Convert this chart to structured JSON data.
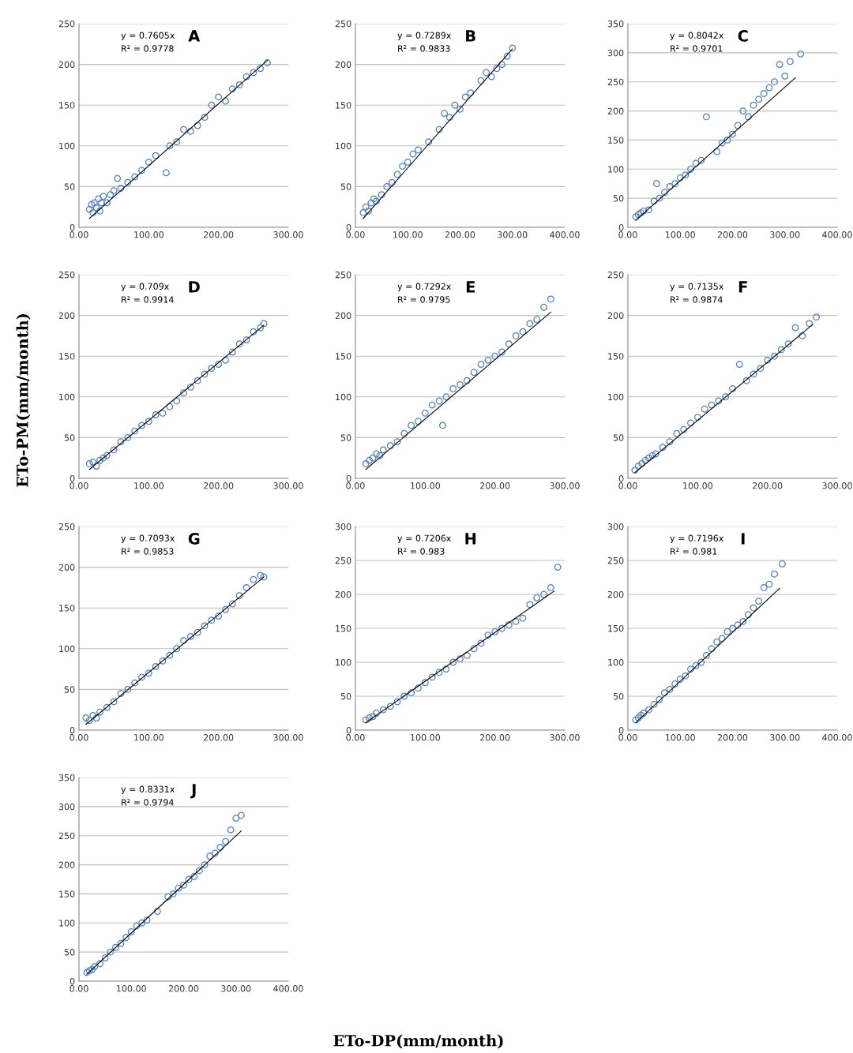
{
  "chart_data": [
    {
      "type": "scatter",
      "title": "A",
      "annotations": [
        "y = 0.7605x",
        "R² = 0.9778"
      ],
      "xlim": [
        0,
        300
      ],
      "xticks": [
        {
          "value": 0,
          "label": "0.00"
        },
        {
          "value": 100,
          "label": "100.00"
        },
        {
          "value": 200,
          "label": "200.00"
        },
        {
          "value": 300,
          "label": "300.00"
        }
      ],
      "ylim": [
        0,
        250
      ],
      "yticks": [
        0,
        50,
        100,
        150,
        200,
        250
      ],
      "grid": "y",
      "marker": "circle",
      "series": [
        {
          "color": "#4f81bd",
          "x": [
            15,
            18,
            20,
            22,
            25,
            28,
            30,
            32,
            35,
            40,
            45,
            50,
            55,
            60,
            70,
            80,
            90,
            100,
            110,
            125,
            130,
            140,
            150,
            160,
            170,
            180,
            190,
            200,
            210,
            220,
            230,
            240,
            250,
            260,
            270
          ],
          "values": [
            22,
            28,
            18,
            30,
            24,
            35,
            20,
            30,
            38,
            30,
            40,
            45,
            60,
            48,
            55,
            62,
            70,
            80,
            88,
            67,
            100,
            105,
            120,
            118,
            125,
            135,
            150,
            160,
            155,
            170,
            175,
            185,
            190,
            195,
            202
          ]
        },
        {
          "type": "line",
          "color": "#000000",
          "marker": "none",
          "x": [
            15,
            270
          ],
          "values": [
            11,
            205
          ]
        }
      ]
    },
    {
      "type": "scatter",
      "title": "B",
      "annotations": [
        "y = 0.7289x",
        "R² = 0.9833"
      ],
      "xlim": [
        0,
        400
      ],
      "xticks": [
        {
          "value": 0,
          "label": "0.00"
        },
        {
          "value": 100,
          "label": "100.00"
        },
        {
          "value": 200,
          "label": "200.00"
        },
        {
          "value": 300,
          "label": "300.00"
        },
        {
          "value": 400,
          "label": "400.00"
        }
      ],
      "ylim": [
        0,
        250
      ],
      "yticks": [
        0,
        50,
        100,
        150,
        200,
        250
      ],
      "grid": "y",
      "marker": "circle",
      "series": [
        {
          "color": "#4f81bd",
          "x": [
            15,
            20,
            25,
            30,
            35,
            40,
            50,
            60,
            70,
            80,
            90,
            100,
            110,
            120,
            140,
            160,
            170,
            180,
            190,
            200,
            210,
            220,
            240,
            250,
            260,
            270,
            280,
            290,
            300
          ],
          "values": [
            18,
            25,
            20,
            30,
            35,
            32,
            40,
            50,
            55,
            65,
            75,
            80,
            90,
            95,
            105,
            120,
            140,
            135,
            150,
            145,
            160,
            165,
            180,
            190,
            185,
            195,
            200,
            210,
            220
          ]
        },
        {
          "type": "line",
          "color": "#000000",
          "marker": "none",
          "x": [
            15,
            300
          ],
          "values": [
            11,
            219
          ]
        }
      ]
    },
    {
      "type": "scatter",
      "title": "C",
      "annotations": [
        "y = 0.8042x",
        "R² = 0.9701"
      ],
      "xlim": [
        0,
        400
      ],
      "xticks": [
        {
          "value": 0,
          "label": "0.00"
        },
        {
          "value": 100,
          "label": "100.00"
        },
        {
          "value": 200,
          "label": "200.00"
        },
        {
          "value": 300,
          "label": "300.00"
        },
        {
          "value": 400,
          "label": "400.00"
        }
      ],
      "ylim": [
        0,
        350
      ],
      "yticks": [
        0,
        50,
        100,
        150,
        200,
        250,
        300,
        350
      ],
      "grid": "y",
      "marker": "circle",
      "series": [
        {
          "color": "#4f81bd",
          "x": [
            15,
            20,
            25,
            30,
            40,
            50,
            55,
            60,
            70,
            80,
            90,
            100,
            110,
            120,
            130,
            140,
            150,
            170,
            180,
            190,
            200,
            210,
            220,
            230,
            240,
            250,
            260,
            270,
            280,
            290,
            300,
            310,
            330
          ],
          "values": [
            18,
            22,
            25,
            28,
            30,
            45,
            75,
            50,
            60,
            70,
            75,
            85,
            90,
            100,
            110,
            115,
            190,
            130,
            145,
            150,
            160,
            175,
            200,
            190,
            210,
            220,
            230,
            240,
            250,
            280,
            260,
            285,
            298
          ]
        },
        {
          "type": "line",
          "color": "#000000",
          "marker": "none",
          "x": [
            15,
            320
          ],
          "values": [
            12,
            257
          ]
        }
      ]
    },
    {
      "type": "scatter",
      "title": "D",
      "annotations": [
        "y = 0.709x",
        "R² = 0.9914"
      ],
      "ylabel": "ETo-PM(mm/month)",
      "xlim": [
        0,
        300
      ],
      "xticks": [
        {
          "value": 0,
          "label": "0.00"
        },
        {
          "value": 100,
          "label": "100.00"
        },
        {
          "value": 200,
          "label": "200.00"
        },
        {
          "value": 300,
          "label": "300.00"
        }
      ],
      "ylim": [
        0,
        250
      ],
      "yticks": [
        0,
        50,
        100,
        150,
        200,
        250
      ],
      "grid": "y",
      "marker": "circle",
      "series": [
        {
          "color": "#4f81bd",
          "x": [
            15,
            20,
            25,
            30,
            35,
            40,
            50,
            60,
            70,
            80,
            90,
            100,
            110,
            120,
            130,
            140,
            150,
            160,
            170,
            180,
            190,
            200,
            210,
            220,
            230,
            240,
            250,
            260,
            265
          ],
          "values": [
            18,
            20,
            15,
            22,
            25,
            28,
            35,
            45,
            50,
            58,
            65,
            70,
            78,
            80,
            88,
            95,
            105,
            112,
            120,
            128,
            135,
            140,
            145,
            155,
            165,
            170,
            180,
            185,
            190
          ]
        },
        {
          "type": "line",
          "color": "#000000",
          "marker": "none",
          "x": [
            15,
            265
          ],
          "values": [
            11,
            188
          ]
        }
      ]
    },
    {
      "type": "scatter",
      "title": "E",
      "annotations": [
        "y = 0.7292x",
        "R² = 0.9795"
      ],
      "xlim": [
        0,
        300
      ],
      "xticks": [
        {
          "value": 0,
          "label": "0.00"
        },
        {
          "value": 100,
          "label": "100.00"
        },
        {
          "value": 200,
          "label": "200.00"
        },
        {
          "value": 300,
          "label": "300.00"
        }
      ],
      "ylim": [
        0,
        250
      ],
      "yticks": [
        0,
        50,
        100,
        150,
        200,
        250
      ],
      "grid": "y",
      "marker": "circle",
      "series": [
        {
          "color": "#4f81bd",
          "x": [
            15,
            20,
            25,
            30,
            35,
            40,
            50,
            60,
            70,
            80,
            90,
            100,
            110,
            120,
            125,
            130,
            140,
            150,
            160,
            170,
            180,
            190,
            200,
            210,
            220,
            230,
            240,
            250,
            260,
            270,
            280
          ],
          "values": [
            18,
            22,
            25,
            30,
            28,
            35,
            40,
            45,
            55,
            65,
            70,
            80,
            90,
            95,
            65,
            100,
            110,
            115,
            120,
            130,
            140,
            145,
            150,
            155,
            165,
            175,
            180,
            190,
            195,
            210,
            220
          ]
        },
        {
          "type": "line",
          "color": "#000000",
          "marker": "none",
          "x": [
            15,
            280
          ],
          "values": [
            11,
            204
          ]
        }
      ]
    },
    {
      "type": "scatter",
      "title": "F",
      "annotations": [
        "y = 0.7135x",
        "R² = 0.9874"
      ],
      "xlim": [
        0,
        300
      ],
      "xticks": [
        {
          "value": 0,
          "label": "0.00"
        },
        {
          "value": 100,
          "label": "100.00"
        },
        {
          "value": 200,
          "label": "200.00"
        },
        {
          "value": 300,
          "label": "300.00"
        }
      ],
      "ylim": [
        0,
        250
      ],
      "yticks": [
        0,
        50,
        100,
        150,
        200,
        250
      ],
      "grid": "y",
      "marker": "circle",
      "series": [
        {
          "color": "#4f81bd",
          "x": [
            10,
            15,
            20,
            25,
            30,
            35,
            40,
            50,
            60,
            70,
            80,
            90,
            100,
            110,
            120,
            130,
            140,
            150,
            160,
            170,
            180,
            190,
            200,
            210,
            220,
            230,
            240,
            250,
            260,
            270
          ],
          "values": [
            10,
            15,
            18,
            22,
            25,
            28,
            30,
            38,
            45,
            55,
            60,
            68,
            75,
            85,
            90,
            95,
            100,
            110,
            140,
            120,
            128,
            135,
            145,
            150,
            158,
            165,
            185,
            175,
            190,
            198
          ]
        },
        {
          "type": "line",
          "color": "#000000",
          "marker": "none",
          "x": [
            10,
            265
          ],
          "values": [
            7,
            189
          ]
        }
      ]
    },
    {
      "type": "scatter",
      "title": "G",
      "annotations": [
        "y = 0.7093x",
        "R² = 0.9853"
      ],
      "xlim": [
        0,
        300
      ],
      "xticks": [
        {
          "value": 0,
          "label": "0.00"
        },
        {
          "value": 100,
          "label": "100.00"
        },
        {
          "value": 200,
          "label": "200.00"
        },
        {
          "value": 300,
          "label": "300.00"
        }
      ],
      "ylim": [
        0,
        250
      ],
      "yticks": [
        0,
        50,
        100,
        150,
        200,
        250
      ],
      "grid": "y",
      "marker": "circle",
      "series": [
        {
          "color": "#4f81bd",
          "x": [
            10,
            15,
            20,
            25,
            30,
            40,
            50,
            60,
            70,
            80,
            90,
            100,
            110,
            120,
            130,
            140,
            150,
            160,
            170,
            180,
            190,
            200,
            210,
            220,
            230,
            240,
            250,
            260,
            265
          ],
          "values": [
            15,
            12,
            18,
            15,
            22,
            28,
            35,
            45,
            50,
            58,
            65,
            70,
            78,
            85,
            92,
            100,
            110,
            115,
            120,
            128,
            135,
            140,
            148,
            155,
            165,
            175,
            185,
            190,
            188
          ]
        },
        {
          "type": "line",
          "color": "#000000",
          "marker": "none",
          "x": [
            10,
            265
          ],
          "values": [
            7,
            188
          ]
        }
      ]
    },
    {
      "type": "scatter",
      "title": "H",
      "annotations": [
        "y = 0.7206x",
        "R² = 0.983"
      ],
      "xlim": [
        0,
        300
      ],
      "xticks": [
        {
          "value": 0,
          "label": "0.00"
        },
        {
          "value": 100,
          "label": "100.00"
        },
        {
          "value": 200,
          "label": "200.00"
        },
        {
          "value": 300,
          "label": "300.00"
        }
      ],
      "ylim": [
        0,
        300
      ],
      "yticks": [
        0,
        50,
        100,
        150,
        200,
        250,
        300
      ],
      "grid": "y",
      "marker": "circle",
      "series": [
        {
          "color": "#4f81bd",
          "x": [
            15,
            20,
            25,
            30,
            40,
            50,
            60,
            70,
            80,
            90,
            100,
            110,
            120,
            130,
            140,
            150,
            160,
            170,
            180,
            190,
            200,
            210,
            220,
            230,
            240,
            250,
            260,
            270,
            280,
            290
          ],
          "values": [
            15,
            18,
            20,
            25,
            30,
            35,
            42,
            50,
            55,
            62,
            70,
            78,
            85,
            90,
            100,
            105,
            110,
            120,
            128,
            140,
            145,
            150,
            155,
            160,
            165,
            185,
            195,
            200,
            210,
            240
          ]
        },
        {
          "type": "line",
          "color": "#000000",
          "marker": "none",
          "x": [
            15,
            285
          ],
          "values": [
            11,
            205
          ]
        }
      ]
    },
    {
      "type": "scatter",
      "title": "I",
      "annotations": [
        "y = 0.7196x",
        "R² = 0.981"
      ],
      "xlim": [
        0,
        400
      ],
      "xticks": [
        {
          "value": 0,
          "label": "0.00"
        },
        {
          "value": 100,
          "label": "100.00"
        },
        {
          "value": 200,
          "label": "200.00"
        },
        {
          "value": 300,
          "label": "300.00"
        },
        {
          "value": 400,
          "label": "400.00"
        }
      ],
      "ylim": [
        0,
        300
      ],
      "yticks": [
        0,
        50,
        100,
        150,
        200,
        250,
        300
      ],
      "grid": "y",
      "marker": "circle",
      "series": [
        {
          "color": "#4f81bd",
          "x": [
            15,
            20,
            25,
            30,
            40,
            50,
            60,
            70,
            80,
            90,
            100,
            110,
            120,
            130,
            140,
            150,
            160,
            170,
            180,
            190,
            200,
            210,
            220,
            230,
            240,
            250,
            260,
            270,
            280,
            295
          ],
          "values": [
            15,
            18,
            22,
            25,
            30,
            38,
            45,
            55,
            60,
            68,
            75,
            80,
            90,
            95,
            100,
            110,
            120,
            130,
            135,
            145,
            150,
            155,
            160,
            170,
            180,
            190,
            210,
            215,
            230,
            245
          ]
        },
        {
          "type": "line",
          "color": "#000000",
          "marker": "none",
          "x": [
            15,
            290
          ],
          "values": [
            11,
            209
          ]
        }
      ]
    },
    {
      "type": "scatter",
      "title": "J",
      "annotations": [
        "y = 0.8331x",
        "R² = 0.9794"
      ],
      "xlabel": "ETo-DP(mm/month)",
      "xlim": [
        0,
        400
      ],
      "xticks": [
        {
          "value": 0,
          "label": "0.00"
        },
        {
          "value": 100,
          "label": "100.00"
        },
        {
          "value": 200,
          "label": "200.00"
        },
        {
          "value": 300,
          "label": "300.00"
        },
        {
          "value": 400,
          "label": "400.00"
        }
      ],
      "ylim": [
        0,
        350
      ],
      "yticks": [
        0,
        50,
        100,
        150,
        200,
        250,
        300,
        350
      ],
      "grid": "y",
      "marker": "circle",
      "series": [
        {
          "color": "#4f81bd",
          "x": [
            15,
            20,
            25,
            30,
            40,
            50,
            60,
            70,
            80,
            90,
            100,
            110,
            120,
            130,
            150,
            170,
            180,
            190,
            200,
            210,
            220,
            230,
            240,
            250,
            260,
            270,
            280,
            290,
            300,
            310
          ],
          "values": [
            15,
            18,
            20,
            25,
            30,
            40,
            50,
            58,
            65,
            75,
            85,
            95,
            100,
            105,
            120,
            145,
            150,
            160,
            165,
            175,
            180,
            190,
            200,
            215,
            220,
            230,
            240,
            260,
            280,
            285
          ]
        },
        {
          "type": "line",
          "color": "#000000",
          "marker": "none",
          "x": [
            15,
            310
          ],
          "values": [
            12,
            258
          ]
        }
      ]
    }
  ]
}
